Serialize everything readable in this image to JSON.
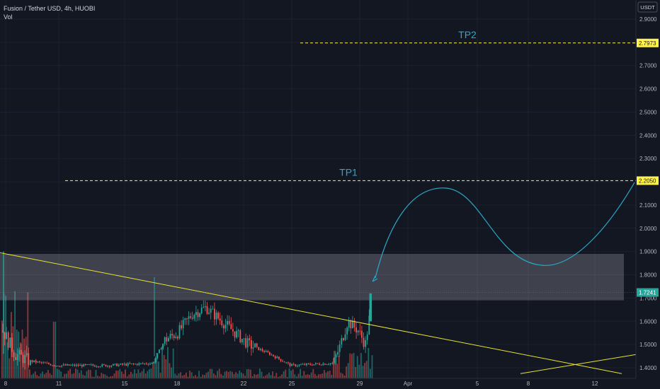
{
  "legend": {
    "title": "Fusion / Tether USD, 4h, HUOBI",
    "indicator": "Vol"
  },
  "chart_data": {
    "type": "candlestick",
    "currency": "USDT",
    "ylim": [
      1.37,
      2.965
    ],
    "y_ticks": [
      "2.9000",
      "2.8000",
      "2.7000",
      "2.6000",
      "2.5000",
      "2.4000",
      "2.3000",
      "2.2000",
      "2.1000",
      "2.0000",
      "1.9000",
      "1.8000",
      "1.7000",
      "1.6000",
      "1.5000",
      "1.4000"
    ],
    "x_ticks": [
      "8",
      "11",
      "15",
      "18",
      "22",
      "25",
      "29",
      "Apr",
      "5",
      "8",
      "12"
    ],
    "current_price": "1.7241",
    "levels": [
      {
        "label": "TP2",
        "price": "2.7973",
        "color": "#fff24a"
      },
      {
        "label": "TP1",
        "price": "2.2050",
        "color": "#fff24a"
      }
    ],
    "zone": {
      "top": 1.89,
      "bottom": 1.69
    },
    "series": [
      {
        "x": "8",
        "o": 1.56,
        "h": 1.9,
        "l": 1.4,
        "c": 1.72
      },
      {
        "x": "11",
        "o": 1.48,
        "h": 1.52,
        "l": 1.4,
        "c": 1.42
      },
      {
        "x": "15",
        "o": 1.42,
        "h": 1.45,
        "l": 1.39,
        "c": 1.41
      },
      {
        "x": "18",
        "o": 1.5,
        "h": 1.79,
        "l": 1.41,
        "c": 1.62
      },
      {
        "x": "20",
        "o": 1.62,
        "h": 1.72,
        "l": 1.54,
        "c": 1.66
      },
      {
        "x": "22",
        "o": 1.56,
        "h": 1.6,
        "l": 1.44,
        "c": 1.48
      },
      {
        "x": "25",
        "o": 1.44,
        "h": 1.49,
        "l": 1.38,
        "c": 1.41
      },
      {
        "x": "28",
        "o": 1.43,
        "h": 1.66,
        "l": 1.41,
        "c": 1.6
      },
      {
        "x": "29",
        "o": 1.6,
        "h": 1.73,
        "l": 1.45,
        "c": 1.72
      }
    ]
  }
}
